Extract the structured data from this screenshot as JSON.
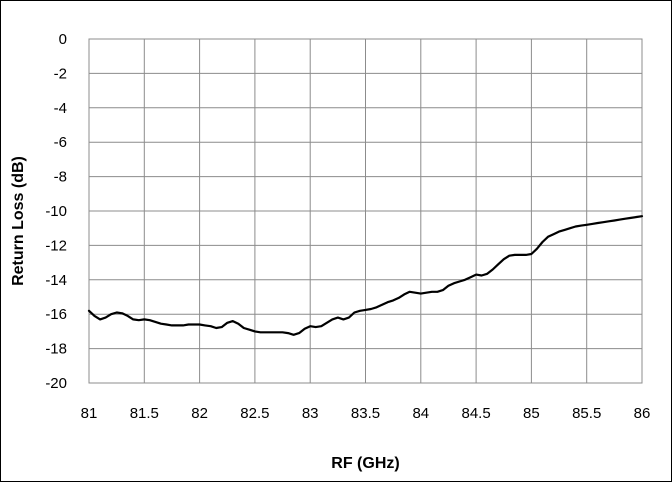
{
  "chart_data": {
    "type": "line",
    "title": "",
    "xlabel": "RF (GHz)",
    "ylabel": "Return Loss (dB)",
    "xlim": [
      81,
      86
    ],
    "ylim": [
      -20,
      0
    ],
    "x_ticks": [
      "81",
      "81.5",
      "82",
      "82.5",
      "83",
      "83.5",
      "84",
      "84.5",
      "85",
      "85.5",
      "86"
    ],
    "y_ticks": [
      "0",
      "-2",
      "-4",
      "-6",
      "-8",
      "-10",
      "-12",
      "-14",
      "-16",
      "-18",
      "-20"
    ],
    "grid": true,
    "legend": "none",
    "series": [
      {
        "color": "#000000",
        "x": [
          81.0,
          81.05,
          81.1,
          81.15,
          81.2,
          81.25,
          81.3,
          81.35,
          81.4,
          81.45,
          81.5,
          81.55,
          81.6,
          81.65,
          81.7,
          81.75,
          81.8,
          81.85,
          81.9,
          81.95,
          82.0,
          82.05,
          82.1,
          82.15,
          82.2,
          82.25,
          82.3,
          82.35,
          82.4,
          82.45,
          82.5,
          82.55,
          82.6,
          82.65,
          82.7,
          82.75,
          82.8,
          82.85,
          82.9,
          82.95,
          83.0,
          83.05,
          83.1,
          83.15,
          83.2,
          83.25,
          83.3,
          83.35,
          83.4,
          83.45,
          83.5,
          83.55,
          83.6,
          83.65,
          83.7,
          83.75,
          83.8,
          83.85,
          83.9,
          83.95,
          84.0,
          84.05,
          84.1,
          84.15,
          84.2,
          84.25,
          84.3,
          84.35,
          84.4,
          84.45,
          84.5,
          84.55,
          84.6,
          84.65,
          84.7,
          84.75,
          84.8,
          84.85,
          84.9,
          84.95,
          85.0,
          85.05,
          85.1,
          85.15,
          85.2,
          85.25,
          85.3,
          85.35,
          85.4,
          85.45,
          85.5,
          85.55,
          85.6,
          85.65,
          85.7,
          85.75,
          85.8,
          85.85,
          85.9,
          85.95,
          86.0
        ],
        "values": [
          -15.8,
          -16.1,
          -16.3,
          -16.2,
          -16.0,
          -15.9,
          -15.95,
          -16.1,
          -16.3,
          -16.35,
          -16.3,
          -16.35,
          -16.45,
          -16.55,
          -16.6,
          -16.65,
          -16.65,
          -16.65,
          -16.6,
          -16.6,
          -16.6,
          -16.65,
          -16.7,
          -16.8,
          -16.75,
          -16.5,
          -16.4,
          -16.55,
          -16.8,
          -16.9,
          -17.0,
          -17.05,
          -17.05,
          -17.05,
          -17.05,
          -17.05,
          -17.1,
          -17.2,
          -17.1,
          -16.85,
          -16.7,
          -16.75,
          -16.7,
          -16.5,
          -16.3,
          -16.2,
          -16.3,
          -16.2,
          -15.9,
          -15.8,
          -15.75,
          -15.7,
          -15.6,
          -15.45,
          -15.3,
          -15.2,
          -15.05,
          -14.85,
          -14.7,
          -14.75,
          -14.8,
          -14.75,
          -14.7,
          -14.7,
          -14.6,
          -14.35,
          -14.2,
          -14.1,
          -14.0,
          -13.85,
          -13.7,
          -13.75,
          -13.65,
          -13.4,
          -13.1,
          -12.8,
          -12.6,
          -12.55,
          -12.55,
          -12.55,
          -12.5,
          -12.2,
          -11.8,
          -11.5,
          -11.35,
          -11.2,
          -11.1,
          -11.0,
          -10.9,
          -10.85,
          -10.8,
          -10.75,
          -10.7,
          -10.65,
          -10.6,
          -10.55,
          -10.5,
          -10.45,
          -10.4,
          -10.35,
          -10.3
        ]
      }
    ]
  }
}
